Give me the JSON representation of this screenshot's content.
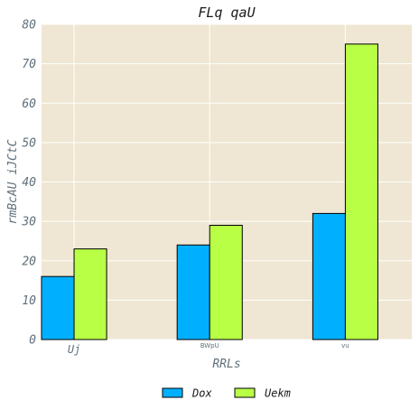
{
  "chart_data": {
    "type": "bar",
    "title": "FLq qaU",
    "xlabel": "RRLs",
    "ylabel": "rmBcAU iJCtC",
    "categories": [
      "Uj",
      "BWpU",
      "vu"
    ],
    "series": [
      {
        "name": "Dox",
        "values": [
          16,
          24,
          32
        ],
        "color": "#00b0ff"
      },
      {
        "name": "Uekm",
        "values": [
          23,
          29,
          75
        ],
        "color": "#b8ff46"
      }
    ],
    "ylim": [
      0,
      80
    ],
    "yticks": [
      0,
      10,
      20,
      30,
      40,
      50,
      60,
      70,
      80
    ],
    "grid": true,
    "legend_position": "bottom-center",
    "background_color": "#efe6d3",
    "grid_color": "#ffffff"
  }
}
